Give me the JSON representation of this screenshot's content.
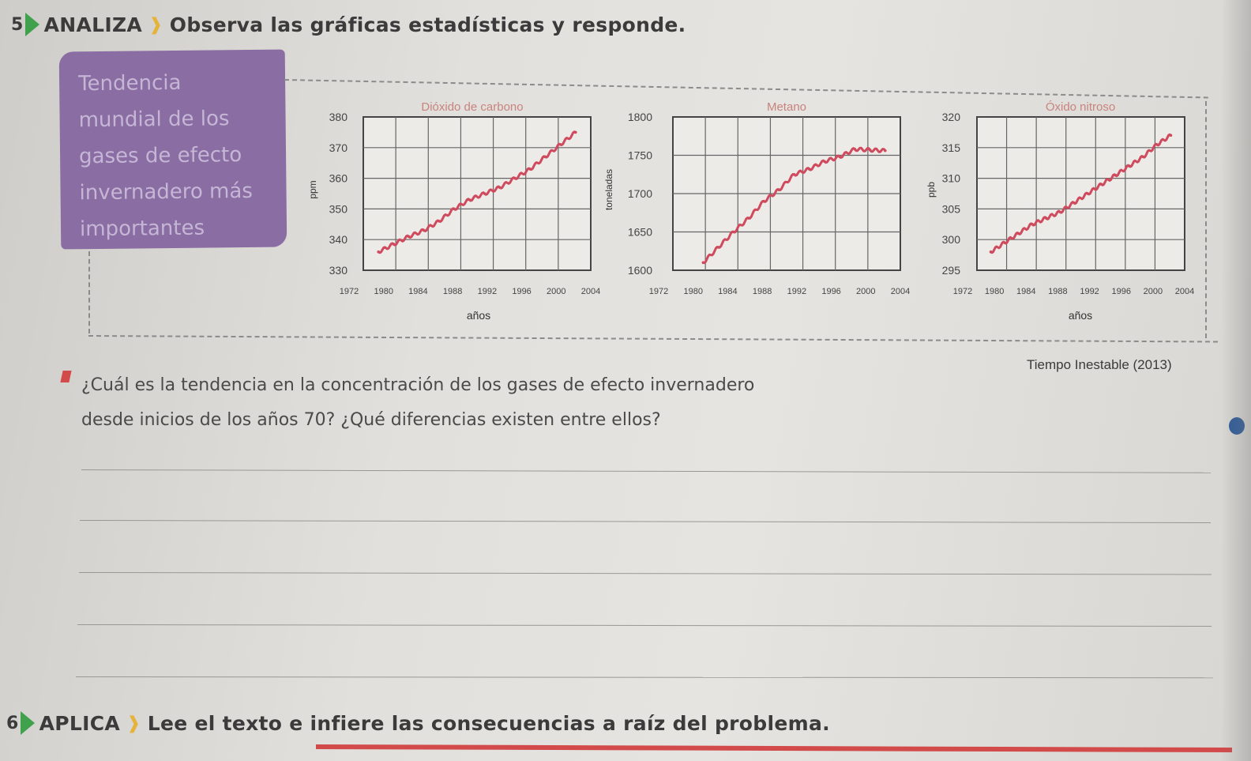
{
  "exercise5": {
    "number": "5",
    "keyword": "ANALIZA",
    "instruction": "Observa las gráficas estadísticas y responde."
  },
  "tag": {
    "lines": [
      "Tendencia",
      "mundial de los",
      "gases de efecto",
      "invernadero más",
      "importantes"
    ]
  },
  "source": "Tiempo Inestable (2013)",
  "question": {
    "line1": "¿Cuál es la tendencia en la concentración de los gases de efecto invernadero",
    "line2": "desde inicios de los años 70? ¿Qué diferencias existen entre ellos?"
  },
  "exercise6": {
    "number": "6",
    "keyword": "APLICA",
    "instruction": "Lee el texto e infiere las consecuencias a raíz del problema."
  },
  "colors": {
    "accent_green": "#3fa14b",
    "accent_yellow": "#e5b33a",
    "tag_purple": "#8a6da3",
    "series_red": "#d04a5e",
    "bullet_red": "#d24a4a"
  },
  "chart_data": [
    {
      "type": "line",
      "title": "Dióxido de carbono",
      "xlabel": "años",
      "ylabel": "ppm",
      "x_ticks": [
        "1972",
        "1980",
        "1984",
        "1988",
        "1992",
        "1996",
        "2000",
        "2004"
      ],
      "y_ticks": [
        330,
        340,
        350,
        360,
        370,
        380
      ],
      "ylim": [
        330,
        380
      ],
      "xlim": [
        1976,
        2006
      ],
      "grid": true,
      "series": [
        {
          "x": [
            1978,
            1980,
            1982,
            1984,
            1986,
            1988,
            1990,
            1992,
            1994,
            1996,
            1998,
            2000,
            2002,
            2004
          ],
          "y": [
            336,
            338.5,
            341,
            343,
            346,
            350,
            353,
            355,
            357,
            360,
            363,
            367,
            371,
            375
          ]
        }
      ]
    },
    {
      "type": "line",
      "title": "Metano",
      "xlabel": "",
      "ylabel": "toneladas",
      "x_ticks": [
        "1972",
        "1980",
        "1984",
        "1988",
        "1992",
        "1996",
        "2000",
        "2004"
      ],
      "y_ticks": [
        1600,
        1650,
        1700,
        1750,
        1800
      ],
      "ylim": [
        1600,
        1800
      ],
      "xlim": [
        1976,
        2006
      ],
      "grid": true,
      "series": [
        {
          "x": [
            1980,
            1982,
            1984,
            1986,
            1988,
            1990,
            1992,
            1994,
            1996,
            1998,
            2000,
            2002,
            2004
          ],
          "y": [
            1610,
            1630,
            1650,
            1668,
            1690,
            1705,
            1725,
            1732,
            1742,
            1748,
            1758,
            1757,
            1756
          ]
        }
      ]
    },
    {
      "type": "line",
      "title": "Óxido nitroso",
      "xlabel": "años",
      "ylabel": "ppb",
      "x_ticks": [
        "1972",
        "1980",
        "1984",
        "1988",
        "1992",
        "1996",
        "2000",
        "2004"
      ],
      "y_ticks": [
        295,
        300,
        305,
        310,
        315,
        320
      ],
      "ylim": [
        295,
        320
      ],
      "xlim": [
        1976,
        2006
      ],
      "grid": true,
      "series": [
        {
          "x": [
            1978,
            1980,
            1982,
            1984,
            1986,
            1988,
            1990,
            1992,
            1994,
            1996,
            1998,
            2000,
            2002,
            2004
          ],
          "y": [
            298,
            299.5,
            301,
            302.5,
            303.5,
            304.5,
            306,
            307.5,
            309,
            310.5,
            312,
            313.5,
            315.5,
            317
          ]
        }
      ]
    }
  ]
}
